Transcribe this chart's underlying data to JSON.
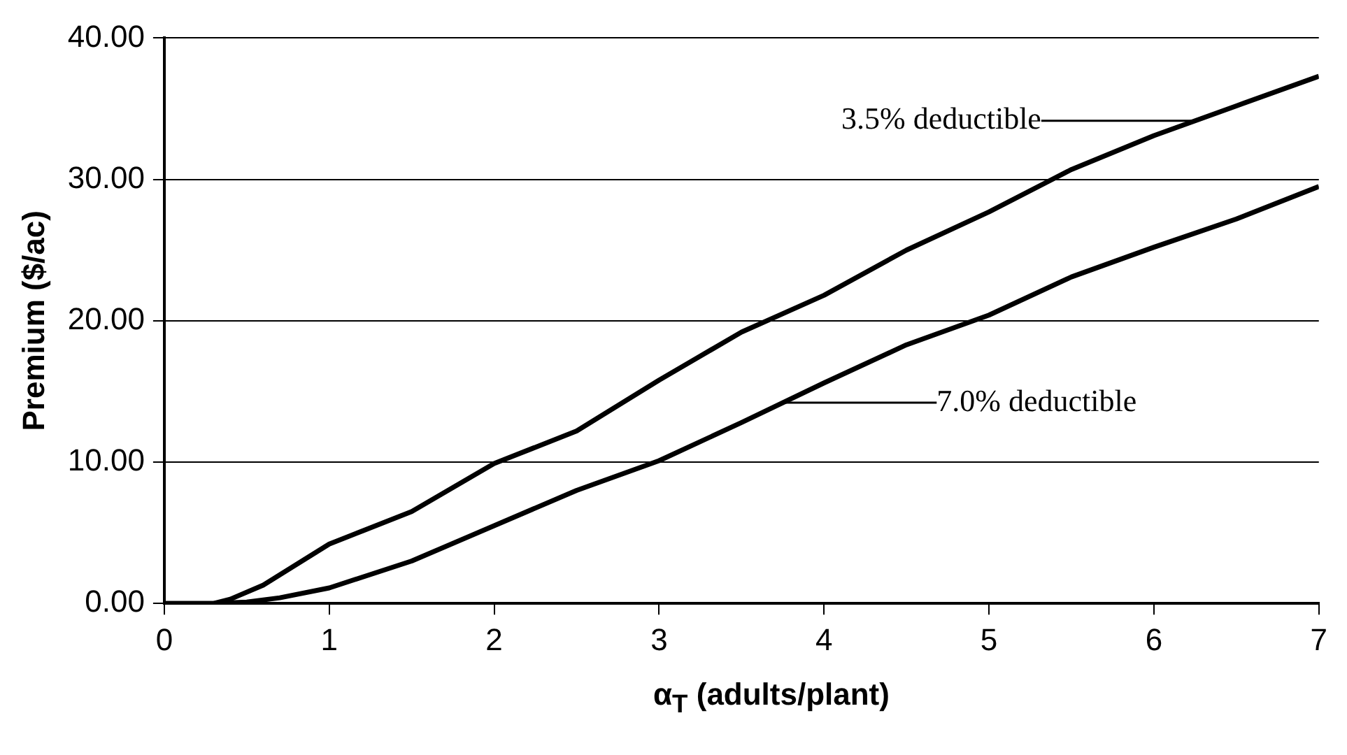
{
  "chart_data": {
    "type": "line",
    "xlabel": "α$_{T}$ (adults/plant)",
    "ylabel": "Premium ($/ac)",
    "xlim": [
      0,
      7
    ],
    "xticks": [
      0,
      1,
      2,
      3,
      4,
      5,
      6,
      7
    ],
    "ylim": [
      0,
      40
    ],
    "yticks": [
      {
        "value": 0,
        "label": "0.00"
      },
      {
        "value": 10,
        "label": "10.00"
      },
      {
        "value": 20,
        "label": "20.00"
      },
      {
        "value": 30,
        "label": "30.00"
      },
      {
        "value": 40,
        "label": "40.00"
      }
    ],
    "grid": "y",
    "marker": "none",
    "line_style": "solid",
    "series": [
      {
        "name": "3.5% deductible",
        "color": "#000000",
        "x": [
          0,
          0.3,
          0.4,
          0.6,
          1.0,
          1.5,
          2.0,
          2.5,
          3.0,
          3.5,
          4.0,
          4.5,
          5.0,
          5.5,
          6.0,
          6.5,
          7.0
        ],
        "values": [
          0,
          0,
          0.3,
          1.3,
          4.2,
          6.5,
          9.9,
          12.2,
          15.8,
          19.2,
          21.8,
          25.0,
          27.7,
          30.7,
          33.1,
          35.2,
          37.3
        ]
      },
      {
        "name": "7.0% deductible",
        "color": "#000000",
        "x": [
          0,
          0.3,
          0.5,
          0.7,
          1.0,
          1.5,
          2.0,
          2.5,
          3.0,
          3.5,
          4.0,
          4.5,
          5.0,
          5.5,
          6.0,
          6.5,
          7.0
        ],
        "values": [
          0,
          0,
          0.1,
          0.4,
          1.1,
          3.0,
          5.5,
          8.0,
          10.1,
          12.8,
          15.6,
          18.3,
          20.4,
          23.1,
          25.2,
          27.2,
          29.5
        ]
      }
    ]
  }
}
